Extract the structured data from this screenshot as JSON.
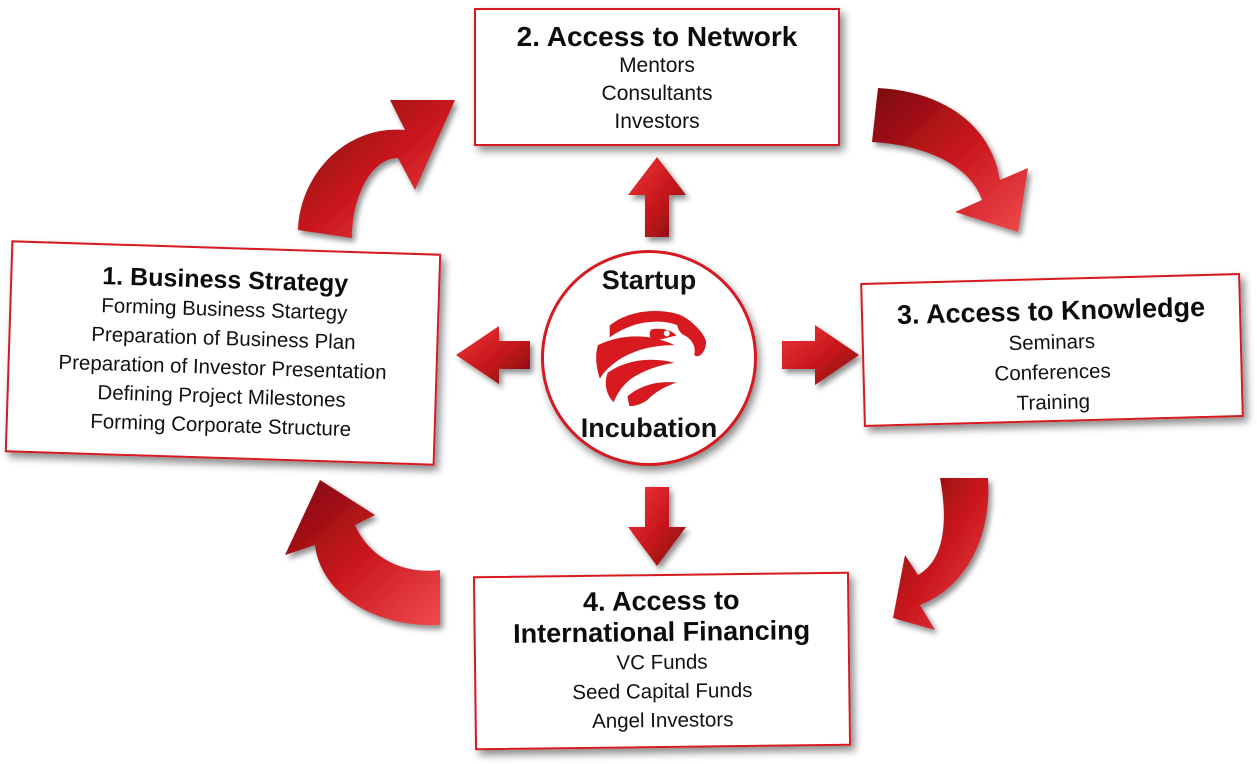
{
  "colors": {
    "accent": "#d61a1f",
    "dark_red": "#7d0c10",
    "text": "#111111"
  },
  "hub": {
    "top_label": "Startup",
    "bottom_label": "Incubation",
    "logo_icon": "eagle-head-icon"
  },
  "boxes": {
    "network": {
      "title": "2. Access to Network",
      "items": [
        "Mentors",
        "Consultants",
        "Investors"
      ]
    },
    "strategy": {
      "title": "1. Business Strategy",
      "items": [
        "Forming Business Startegy",
        "Preparation of Business Plan",
        "Preparation of Investor Presentation",
        "Defining Project Milestones",
        "Forming Corporate Structure"
      ]
    },
    "knowledge": {
      "title": "3. Access to Knowledge",
      "items": [
        "Seminars",
        "Conferences",
        "Training"
      ]
    },
    "financing": {
      "title_line1": "4. Access to",
      "title_line2": "International Financing",
      "items": [
        "VC Funds",
        "Seed Capital Funds",
        "Angel Investors"
      ]
    }
  }
}
